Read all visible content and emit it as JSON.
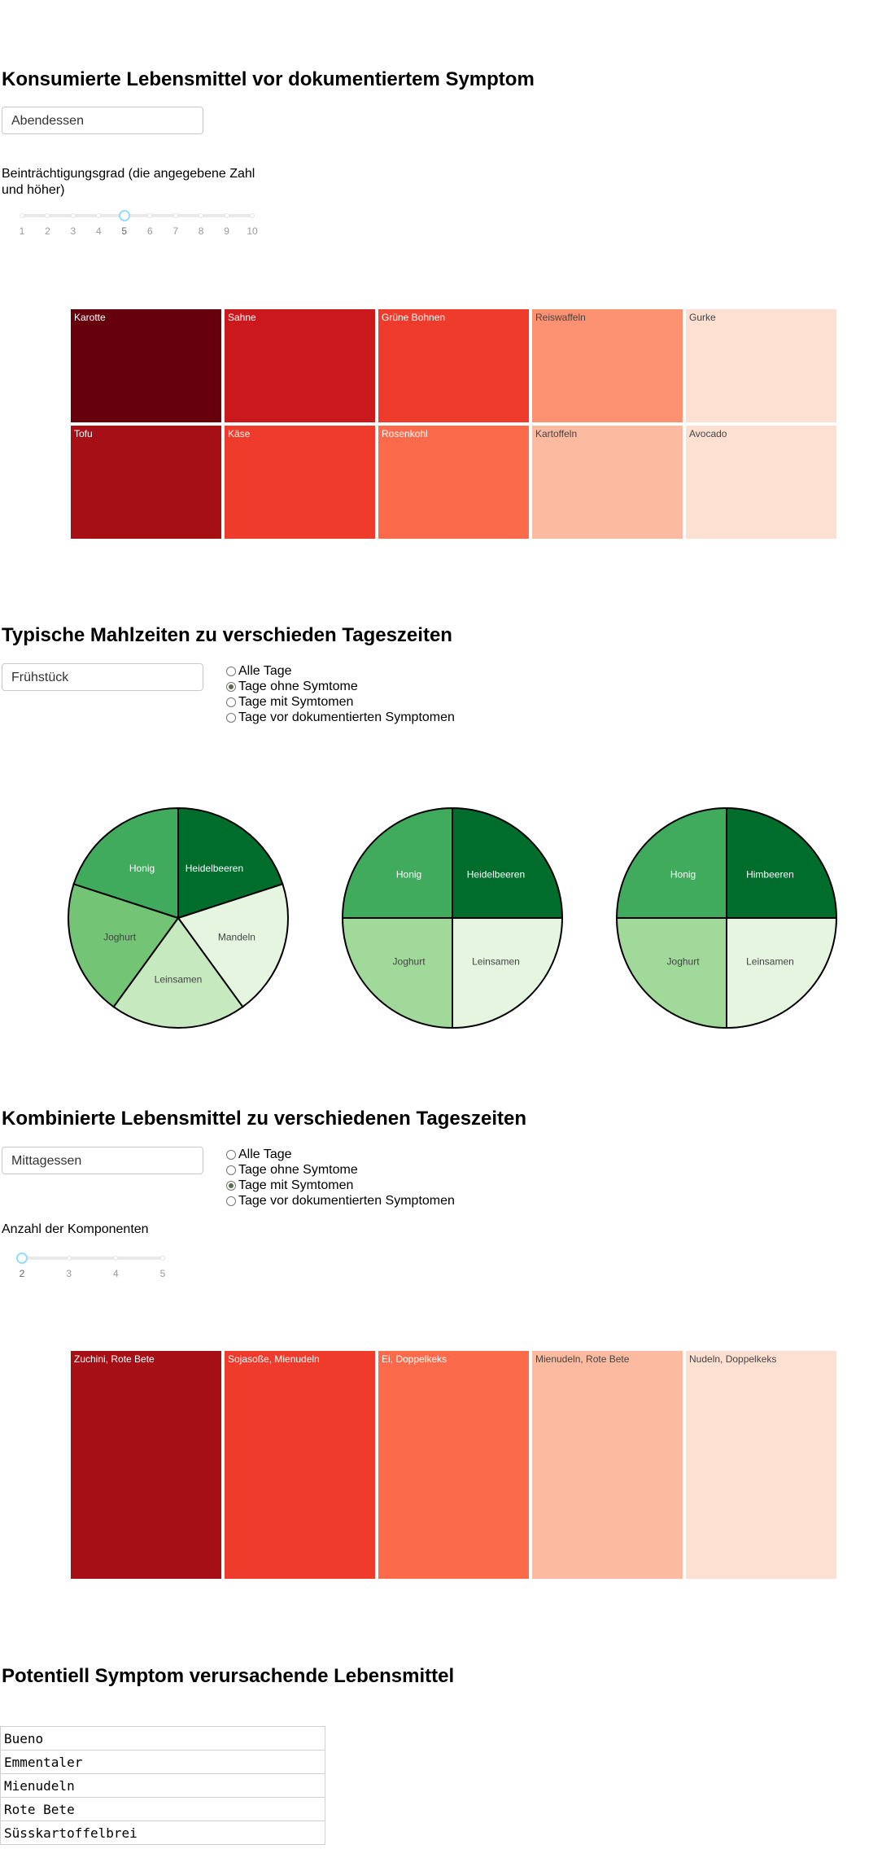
{
  "consumed": {
    "title": "Konsumierte Lebensmittel vor dokumentiertem Symptom",
    "meal_select": "Abendessen",
    "slider_label": "Beinträchtigungsgrad (die angegebene Zahl und höher)",
    "slider_marks": [
      "1",
      "2",
      "3",
      "4",
      "5",
      "6",
      "7",
      "8",
      "9",
      "10"
    ],
    "slider_value": 5,
    "treemap": [
      {
        "label": "Karotte",
        "color": "#67000d"
      },
      {
        "label": "Sahne",
        "color": "#cb181d"
      },
      {
        "label": "Grüne Bohnen",
        "color": "#ef3b2c"
      },
      {
        "label": "Reiswaffeln",
        "color": "#fc9272"
      },
      {
        "label": "Gurke",
        "color": "#fee0d2"
      },
      {
        "label": "Tofu",
        "color": "#a50f15"
      },
      {
        "label": "Käse",
        "color": "#ef3b2c"
      },
      {
        "label": "Rosenkohl",
        "color": "#fb6a4a"
      },
      {
        "label": "Kartoffeln",
        "color": "#fcbba1"
      },
      {
        "label": "Avocado",
        "color": "#fee0d2"
      }
    ]
  },
  "typical": {
    "title": "Typische Mahlzeiten zu verschieden Tageszeiten",
    "meal_select": "Frühstück",
    "radio_options": [
      "Alle Tage",
      "Tage ohne Symtome",
      "Tage mit Symtomen",
      "Tage vor dokumentierten Symptomen"
    ],
    "radio_selected": 1,
    "pies": [
      {
        "slices": [
          {
            "label": "Heidelbeeren",
            "value": 1,
            "color": "#006d2c"
          },
          {
            "label": "Mandeln",
            "value": 1,
            "color": "#e5f5e0"
          },
          {
            "label": "Leinsamen",
            "value": 1,
            "color": "#c7e9c0"
          },
          {
            "label": "Joghurt",
            "value": 1,
            "color": "#74c476"
          },
          {
            "label": "Honig",
            "value": 1,
            "color": "#41ab5d"
          }
        ]
      },
      {
        "slices": [
          {
            "label": "Heidelbeeren",
            "value": 1,
            "color": "#006d2c"
          },
          {
            "label": "Leinsamen",
            "value": 1,
            "color": "#e5f5e0"
          },
          {
            "label": "Joghurt",
            "value": 1,
            "color": "#a1d99b"
          },
          {
            "label": "Honig",
            "value": 1,
            "color": "#41ab5d"
          }
        ]
      },
      {
        "slices": [
          {
            "label": "Himbeeren",
            "value": 1,
            "color": "#006d2c"
          },
          {
            "label": "Leinsamen",
            "value": 1,
            "color": "#e5f5e0"
          },
          {
            "label": "Joghurt",
            "value": 1,
            "color": "#a1d99b"
          },
          {
            "label": "Honig",
            "value": 1,
            "color": "#41ab5d"
          }
        ]
      }
    ]
  },
  "combined": {
    "title": "Kombinierte Lebensmittel zu verschiedenen Tageszeiten",
    "meal_select": "Mittagessen",
    "radio_options": [
      "Alle Tage",
      "Tage ohne Symtome",
      "Tage mit Symtomen",
      "Tage vor dokumentierten Symptomen"
    ],
    "radio_selected": 2,
    "slider_label": "Anzahl der Komponenten",
    "slider_marks": [
      "2",
      "3",
      "4",
      "5"
    ],
    "slider_value": 2,
    "treemap": [
      {
        "label": "Zuchini, Rote Bete",
        "color": "#a50f15"
      },
      {
        "label": "Sojasoße, Mienudeln",
        "color": "#ef3b2c"
      },
      {
        "label": "Ei, Doppelkeks",
        "color": "#fb6a4a"
      },
      {
        "label": "Mienudeln, Rote Bete",
        "color": "#fcbba1"
      },
      {
        "label": "Nudeln, Doppelkeks",
        "color": "#fee0d2"
      }
    ]
  },
  "potential": {
    "title": "Potentiell Symptom verursachende Lebensmittel",
    "items": [
      "Bueno",
      "Emmentaler",
      "Mienudeln",
      "Rote Bete",
      "Süsskartoffelbrei"
    ]
  }
}
